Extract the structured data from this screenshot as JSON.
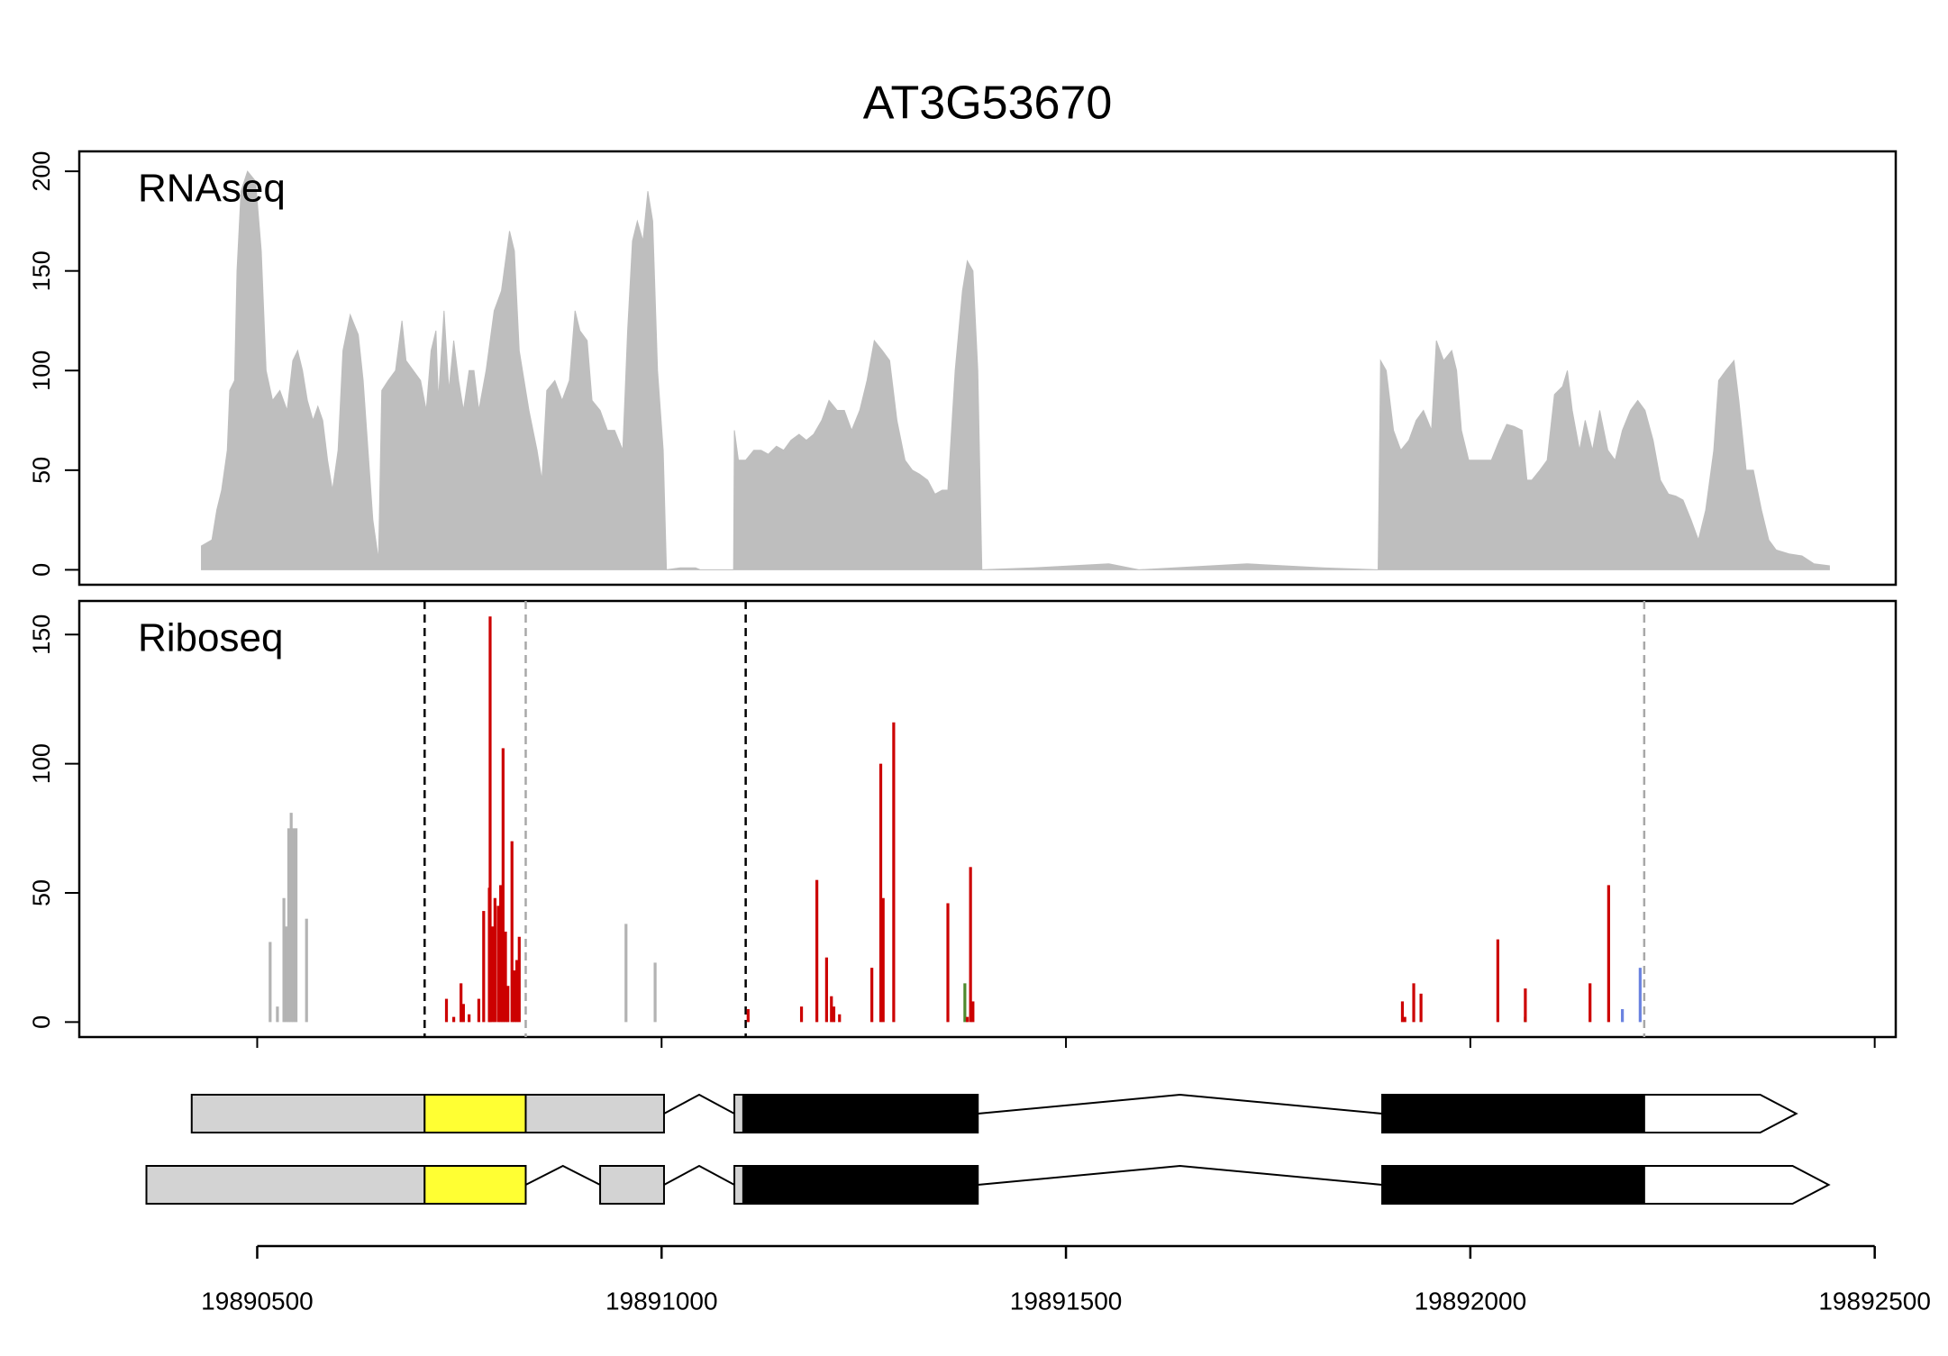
{
  "chart_data": [
    {
      "type": "area",
      "title": "AT3G53670",
      "label": "RNAseq",
      "xlim": [
        19890280,
        19892526
      ],
      "ylim": [
        -7.5,
        210
      ],
      "yticks": [
        0,
        50,
        100,
        150,
        200
      ],
      "series": [
        {
          "color": "#bebebe",
          "x": [
            19890431,
            19890444,
            19890450,
            19890456,
            19890463,
            19890466,
            19890472,
            19890475,
            19890480,
            19890488,
            19890498,
            19890505,
            19890511,
            19890519,
            19890528,
            19890537,
            19890544,
            19890550,
            19890556,
            19890562,
            19890569,
            19890575,
            19890581,
            19890587,
            19890593,
            19890600,
            19890606,
            19890615,
            19890625,
            19890631,
            19890637,
            19890643,
            19890650,
            19890654,
            19890662,
            19890671,
            19890679,
            19890684,
            19890693,
            19890702,
            19890709,
            19890715,
            19890721,
            19890724,
            19890731,
            19890737,
            19890743,
            19890749,
            19890755,
            19890762,
            19890768,
            19890774,
            19890783,
            19890793,
            19890802,
            19890812,
            19890818,
            19890824,
            19890830,
            19890836,
            19890846,
            19890852,
            19890858,
            19890868,
            19890877,
            19890886,
            19890893,
            19890899,
            19890908,
            19890914,
            19890924,
            19890933,
            19890942,
            19890952,
            19890958,
            19890964,
            19890970,
            19890977,
            19890983,
            19890989,
            19890995,
            19891002,
            19891006,
            19891023,
            19891042,
            19891048,
            19891089,
            19891090,
            19891095,
            19891104,
            19891114,
            19891123,
            19891132,
            19891142,
            19891151,
            19891160,
            19891170,
            19891179,
            19891188,
            19891198,
            19891207,
            19891217,
            19891226,
            19891235,
            19891245,
            19891254,
            19891263,
            19891273,
            19891282,
            19891291,
            19891301,
            19891310,
            19891319,
            19891329,
            19891338,
            19891347,
            19891354,
            19891363,
            19891372,
            19891378,
            19891385,
            19891391,
            19891396,
            19891460,
            19891553,
            19891590,
            19891724,
            19891818,
            19891886,
            19891889,
            19891896,
            19891905,
            19891914,
            19891924,
            19891933,
            19891942,
            19891952,
            19891958,
            19891967,
            19891977,
            19891983,
            19891989,
            19891998,
            19892008,
            19892017,
            19892026,
            19892036,
            19892045,
            19892054,
            19892064,
            19892070,
            19892076,
            19892086,
            19892095,
            19892104,
            19892114,
            19892120,
            19892126,
            19892135,
            19892142,
            19892151,
            19892160,
            19892170,
            19892179,
            19892188,
            19892198,
            19892207,
            19892216,
            19892226,
            19892235,
            19892245,
            19892254,
            19892263,
            19892273,
            19892282,
            19892291,
            19892301,
            19892307,
            19892316,
            19892326,
            19892332,
            19892341,
            19892350,
            19892360,
            19892369,
            19892378,
            19892394,
            19892410,
            19892425,
            19892444
          ],
          "values": [
            12,
            15,
            30,
            40,
            60,
            90,
            95,
            150,
            190,
            200,
            195,
            160,
            100,
            85,
            90,
            80,
            105,
            110,
            100,
            85,
            75,
            82,
            75,
            55,
            40,
            60,
            110,
            128,
            118,
            95,
            60,
            25,
            5,
            90,
            95,
            100,
            125,
            105,
            100,
            95,
            80,
            110,
            120,
            85,
            130,
            90,
            115,
            95,
            80,
            100,
            100,
            80,
            100,
            130,
            140,
            170,
            160,
            110,
            95,
            80,
            60,
            45,
            90,
            95,
            85,
            95,
            130,
            120,
            115,
            85,
            80,
            70,
            70,
            60,
            120,
            165,
            175,
            165,
            190,
            175,
            100,
            60,
            0,
            1,
            1,
            0,
            0,
            70,
            55,
            55,
            60,
            60,
            58,
            62,
            60,
            65,
            68,
            65,
            68,
            75,
            85,
            80,
            80,
            70,
            80,
            95,
            115,
            110,
            105,
            75,
            55,
            50,
            48,
            45,
            38,
            40,
            40,
            100,
            140,
            155,
            150,
            100,
            0,
            1,
            3,
            0,
            3,
            1,
            0,
            105,
            100,
            70,
            60,
            65,
            75,
            80,
            70,
            115,
            105,
            110,
            100,
            70,
            55,
            55,
            55,
            55,
            65,
            73,
            72,
            70,
            45,
            45,
            50,
            55,
            88,
            92,
            100,
            80,
            60,
            75,
            60,
            80,
            60,
            55,
            70,
            80,
            85,
            80,
            65,
            45,
            38,
            37,
            35,
            25,
            15,
            30,
            60,
            95,
            100,
            105,
            85,
            50,
            50,
            30,
            15,
            10,
            8,
            7,
            3,
            2
          ]
        }
      ]
    },
    {
      "type": "bar",
      "label": "Riboseq",
      "xlim": [
        19890280,
        19892526
      ],
      "ylim": [
        -5.8,
        163
      ],
      "yticks": [
        0,
        50,
        100,
        150
      ],
      "xticks": [
        19890500,
        19891000,
        19891500,
        19892000,
        19892500
      ],
      "series": [
        {
          "color": "#b3b3b3",
          "x": [
            19890516,
            19890525,
            19890533,
            19890536,
            19890539,
            19890542,
            19890545,
            19890548,
            19890561,
            19890956,
            19890992
          ],
          "values": [
            31,
            6,
            48,
            37,
            75,
            81,
            75,
            75,
            40,
            38,
            23
          ]
        },
        {
          "color": "#4f8a2e",
          "x": [
            19891375,
            19892068
          ],
          "values": [
            15,
            2
          ]
        },
        {
          "color": "#cc0000",
          "x": [
            19890734,
            19890743,
            19890752,
            19890755,
            19890762,
            19890774,
            19890780,
            19890787,
            19890788,
            19890791,
            19890794,
            19890798,
            19890801,
            19890804,
            19890807,
            19890810,
            19890815,
            19890818,
            19890821,
            19890824,
            19891107,
            19891173,
            19891192,
            19891204,
            19891210,
            19891213,
            19891220,
            19891260,
            19891271,
            19891274,
            19891287,
            19891354,
            19891378,
            19891382,
            19891385,
            19891916,
            19891919,
            19891930,
            19891939,
            19892034,
            19892068,
            19892148,
            19892171
          ],
          "values": [
            9,
            2,
            15,
            7,
            3,
            9,
            43,
            52,
            157,
            37,
            48,
            45,
            53,
            106,
            35,
            14,
            70,
            20,
            24,
            33,
            5,
            6,
            55,
            25,
            10,
            6,
            3,
            21,
            100,
            48,
            116,
            46,
            2,
            60,
            8,
            8,
            2,
            15,
            11,
            32,
            13,
            15,
            53
          ]
        },
        {
          "color": "#6b83e0",
          "x": [
            19892188,
            19892210
          ],
          "values": [
            5,
            21
          ]
        }
      ],
      "vlines": [
        {
          "x": 19890707,
          "color": "#000000"
        },
        {
          "x": 19891104,
          "color": "#000000"
        },
        {
          "x": 19890832,
          "color": "#a8a8a8"
        },
        {
          "x": 19892215,
          "color": "#a8a8a8"
        }
      ]
    },
    {
      "type": "gene-model",
      "xlim": [
        19890280,
        19892526
      ],
      "xticks": [
        19890500,
        19891000,
        19891500,
        19892000,
        19892500
      ],
      "uorf": [
        19890707,
        19890832
      ],
      "cds": [
        19891101,
        19892215
      ],
      "colors": {
        "utr5": "#d3d3d3",
        "uorf": "#ffff33",
        "cds": "#000000",
        "utr3": "#ffffff"
      },
      "transcripts": [
        {
          "exons": [
            [
              19890419,
              19891003
            ],
            [
              19891090,
              19891391
            ],
            [
              19891891,
              19892403
            ]
          ]
        },
        {
          "exons": [
            [
              19890363,
              19890832
            ],
            [
              19890924,
              19891003
            ],
            [
              19891090,
              19891391
            ],
            [
              19891891,
              19892443
            ]
          ]
        }
      ]
    }
  ]
}
